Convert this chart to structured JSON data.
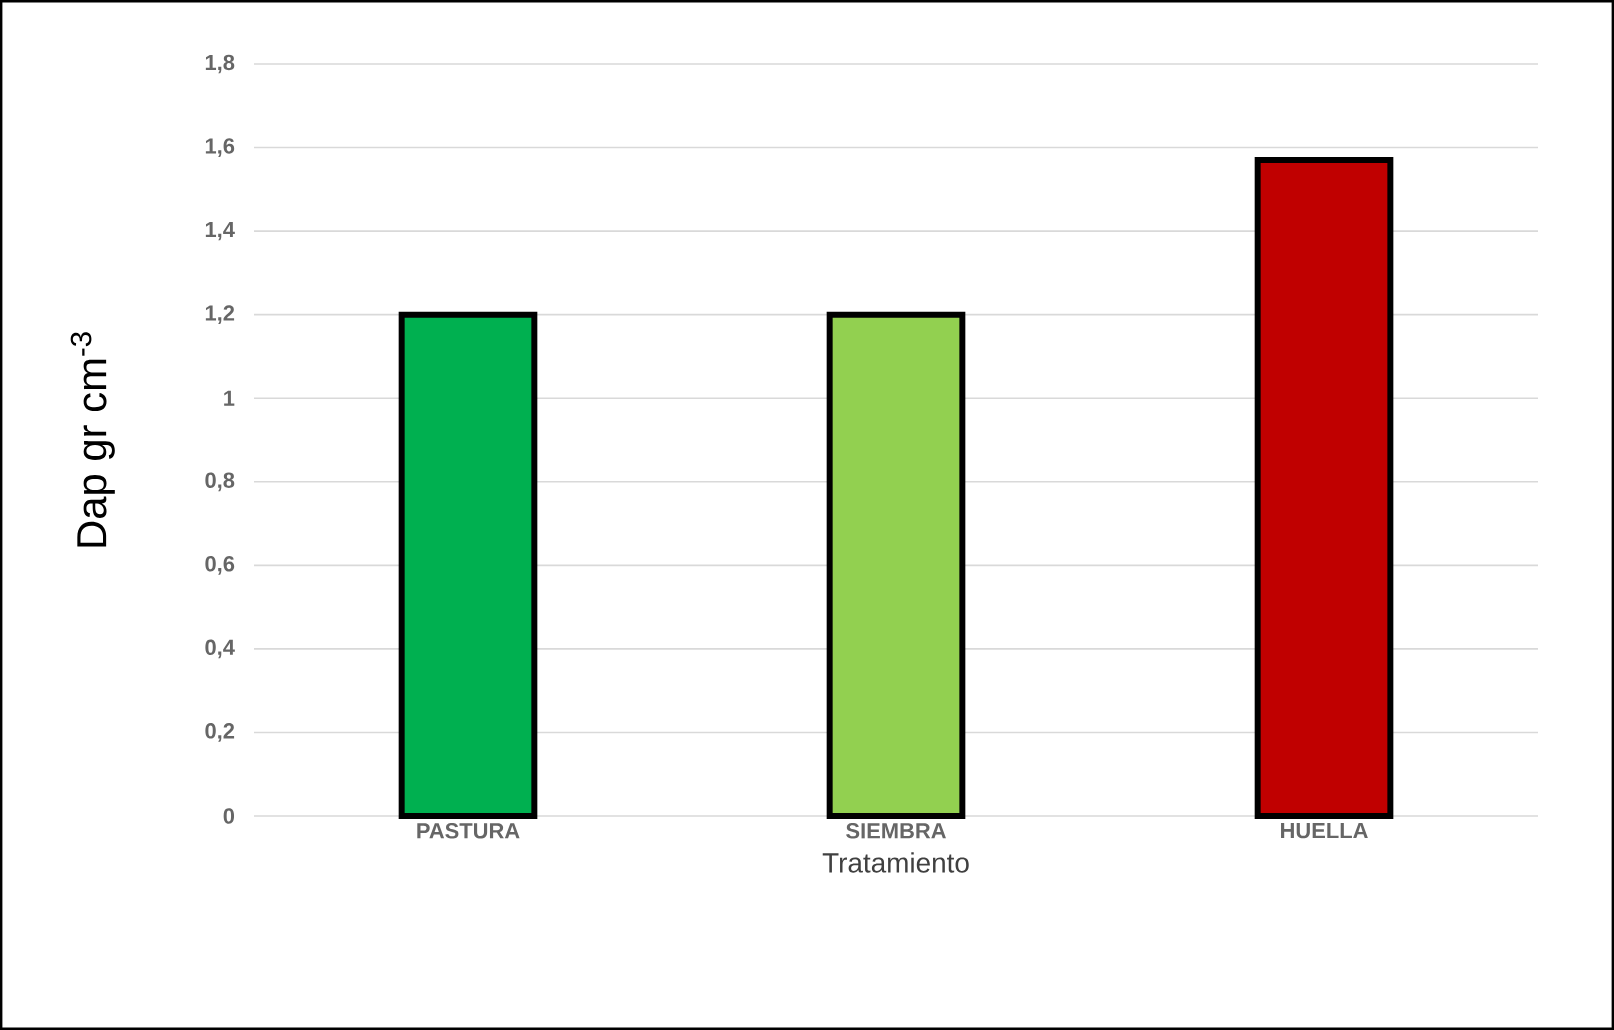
{
  "chart_data": {
    "type": "bar",
    "categories": [
      "PASTURA",
      "SIEMBRA",
      "HUELLA"
    ],
    "values": [
      1.2,
      1.2,
      1.57
    ],
    "colors": [
      "#00b050",
      "#92d050",
      "#c00000"
    ],
    "xlabel": "Tratamiento",
    "ylabel": "Dap gr cm$^{-3}$",
    "ylim": [
      0,
      1.8
    ],
    "yticks": [
      0,
      {
        "value": 0.2,
        "label": "0,2"
      },
      {
        "value": 0.4,
        "label": "0,4"
      },
      {
        "value": 0.6,
        "label": "0,6"
      },
      {
        "value": 0.8,
        "label": "0,8"
      },
      1,
      {
        "value": 1.2,
        "label": "1,2"
      },
      {
        "value": 1.4,
        "label": "1,4"
      },
      {
        "value": 1.6,
        "label": "1,6"
      },
      {
        "value": 1.8,
        "label": "1,8"
      }
    ],
    "grid": "y"
  }
}
